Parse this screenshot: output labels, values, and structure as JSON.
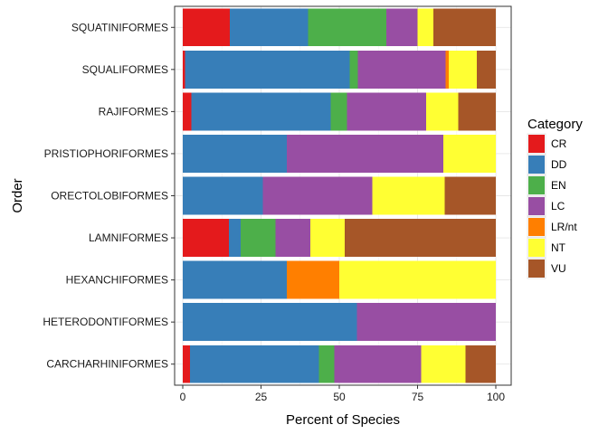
{
  "chart_data": {
    "type": "bar",
    "orientation": "horizontal",
    "stacked": true,
    "title": "",
    "xlabel": "Percent of Species",
    "ylabel": "Order",
    "xlim": [
      0,
      100
    ],
    "xticks": [
      0,
      25,
      50,
      75,
      100
    ],
    "grid": true,
    "categories": [
      "SQUATINIFORMES",
      "SQUALIFORMES",
      "RAJIFORMES",
      "PRISTIOPHORIFORMES",
      "ORECTOLOBIFORMES",
      "LAMNIFORMES",
      "HEXANCHIFORMES",
      "HETERODONTIFORMES",
      "CARCHARHINIFORMES"
    ],
    "legend": {
      "title": "Category",
      "position": "right"
    },
    "series": [
      {
        "name": "CR",
        "color": "#e41a1c",
        "values": [
          15,
          0.7,
          2.8,
          0,
          0,
          14.8,
          0,
          0,
          2.3
        ]
      },
      {
        "name": "DD",
        "color": "#377eb8",
        "values": [
          25,
          52.6,
          44.5,
          33.3,
          25.6,
          3.7,
          33.3,
          55.6,
          41.2
        ]
      },
      {
        "name": "EN",
        "color": "#4daf4a",
        "values": [
          25,
          2.6,
          5.2,
          0,
          0,
          11.1,
          0,
          0,
          4.9
        ]
      },
      {
        "name": "LC",
        "color": "#984ea3",
        "values": [
          10,
          28,
          25.2,
          50,
          35,
          11.1,
          0,
          44.4,
          27.8
        ]
      },
      {
        "name": "LR/nt",
        "color": "#ff7f00",
        "values": [
          0,
          1,
          0,
          0,
          0,
          0,
          16.7,
          0,
          0
        ]
      },
      {
        "name": "NT",
        "color": "#ffff33",
        "values": [
          5,
          9.1,
          10.3,
          16.7,
          23.1,
          11.1,
          50,
          0,
          14.1
        ]
      },
      {
        "name": "VU",
        "color": "#a65628",
        "values": [
          20,
          6,
          12,
          0,
          16.3,
          48.2,
          0,
          0,
          9.7
        ]
      }
    ]
  }
}
